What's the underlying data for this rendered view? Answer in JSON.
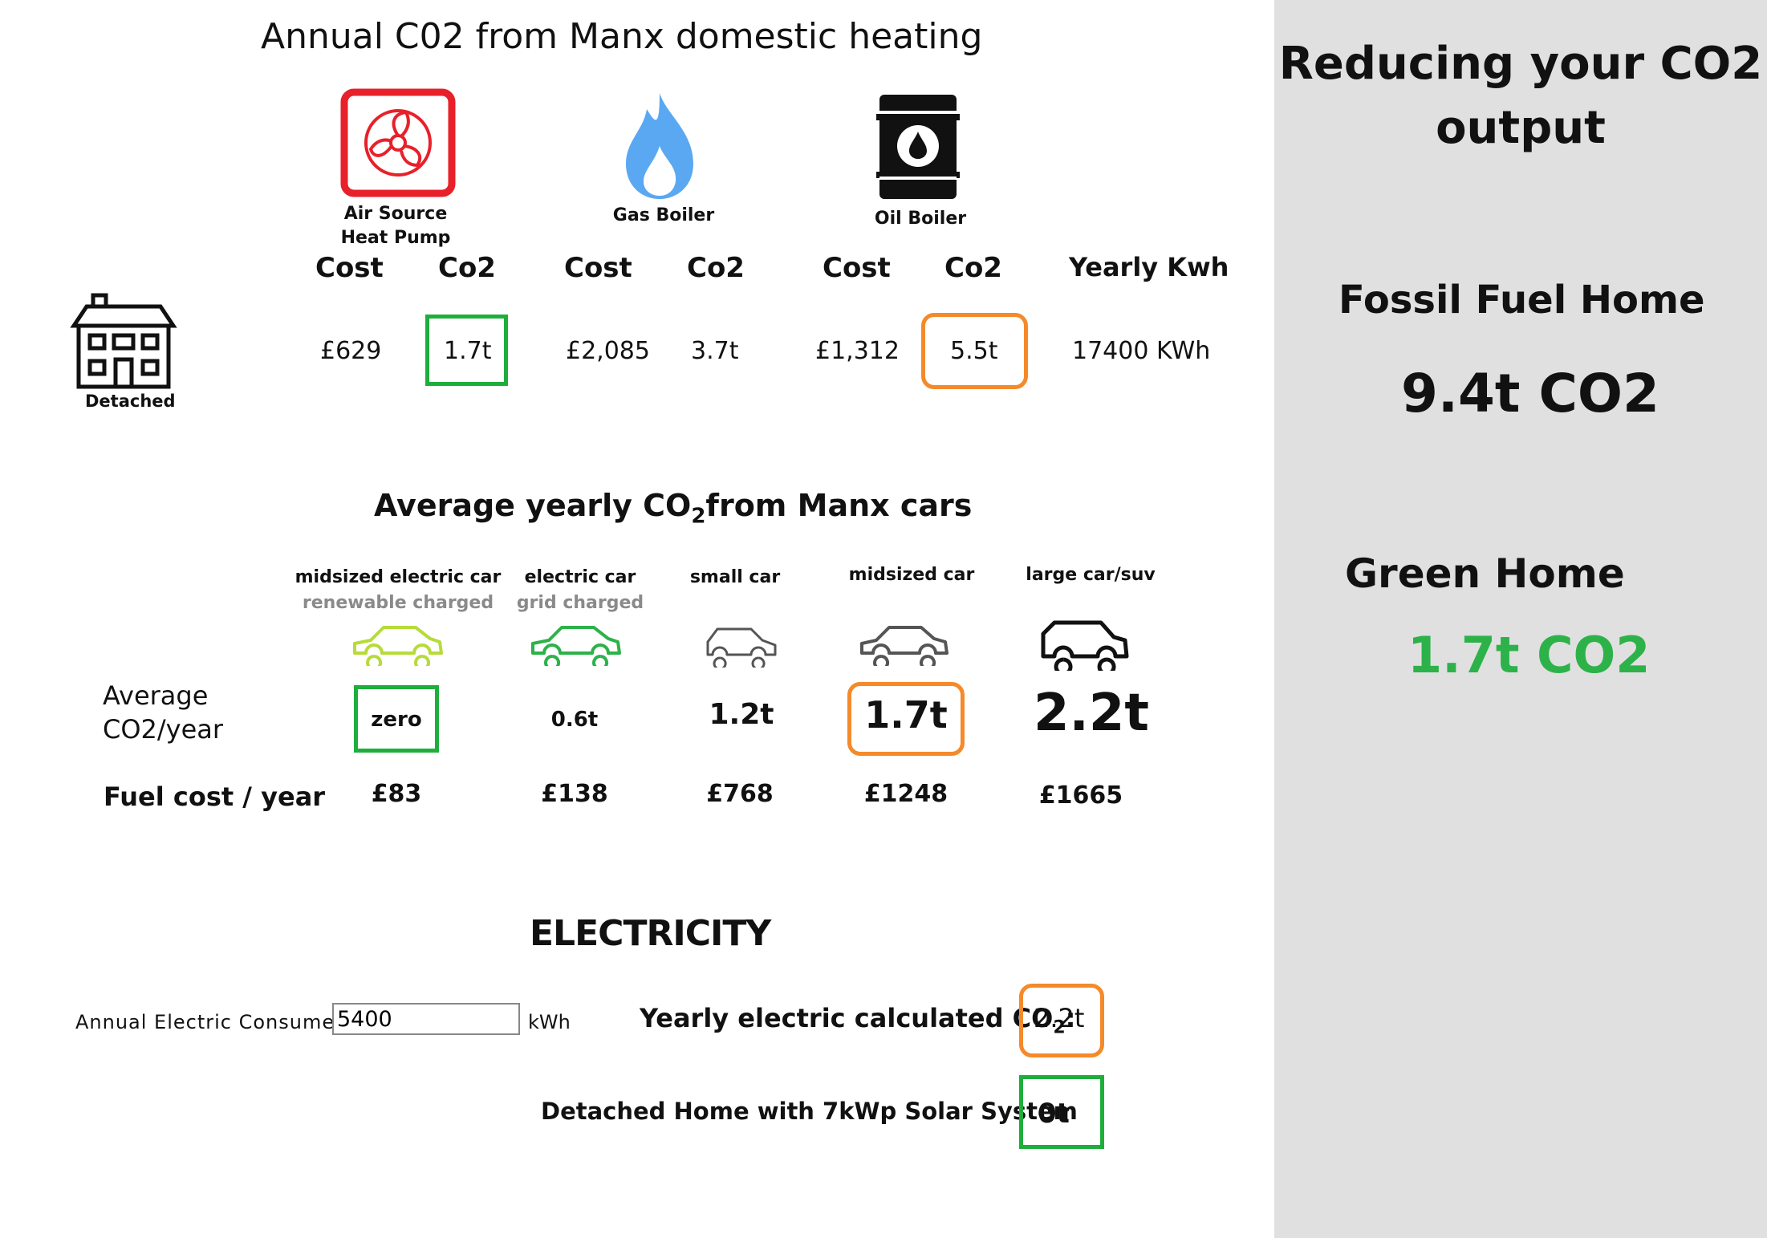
{
  "heating": {
    "title": "Annual C02 from Manx domestic heating",
    "systems": [
      {
        "label_line1": "Air Source",
        "label_line2": "Heat Pump",
        "icon": "heat-pump-icon",
        "color": "#e8202a"
      },
      {
        "label": "Gas Boiler",
        "icon": "flame-icon",
        "color": "#5aa8f2"
      },
      {
        "label": "Oil Boiler",
        "icon": "oil-barrel-icon",
        "color": "#111111"
      }
    ],
    "col_cost": "Cost",
    "col_co2": "Co2",
    "col_kwh": "Yearly Kwh",
    "house_label": "Detached",
    "row": {
      "ashp_cost": "£629",
      "ashp_co2": "1.7t",
      "gas_cost": "£2,085",
      "gas_co2": "3.7t",
      "oil_cost": "£1,312",
      "oil_co2": "5.5t",
      "kwh": "17400 KWh"
    }
  },
  "cars": {
    "title_pre": "Average yearly CO",
    "title_sub": "2",
    "title_post": "from Manx cars",
    "row_co2_line1": "Average",
    "row_co2_line2": "CO2/year",
    "row_fuel": "Fuel cost / year",
    "items": [
      {
        "label": "midsized  electric car",
        "sublabel": "renewable charged",
        "co2": "zero",
        "fuel": "£83",
        "color": "#b6db3a"
      },
      {
        "label": "electric car",
        "sublabel": "grid charged",
        "co2": "0.6t",
        "fuel": "£138",
        "color": "#2db24a"
      },
      {
        "label": "small car",
        "sublabel": "",
        "co2": "1.2t",
        "fuel": "£768",
        "color": "#555555"
      },
      {
        "label": "midsized car",
        "sublabel": "",
        "co2": "1.7t",
        "fuel": "£1248",
        "color": "#555555"
      },
      {
        "label": "large car/suv",
        "sublabel": "",
        "co2": "2.2t",
        "fuel": "£1665",
        "color": "#111111"
      }
    ]
  },
  "electricity": {
    "title": "ELECTRICITY",
    "input_label": "Annual Electric Consumed",
    "input_value": "5400",
    "unit": "kWh",
    "calc_label_pre": "Yearly electric calculated CO",
    "calc_label_sub": "2",
    "calc_label_post": ":",
    "calc_value": "2.2t",
    "solar_label": "Detached Home with 7kWp Solar System",
    "solar_value": "0t"
  },
  "sidebar": {
    "title_line1": "Reducing your CO2",
    "title_line2": "output",
    "fossil_label": "Fossil Fuel Home",
    "fossil_value": "9.4t CO2",
    "green_label": "Green Home",
    "green_value": "1.7t CO2",
    "green_color": "#2db24a"
  }
}
